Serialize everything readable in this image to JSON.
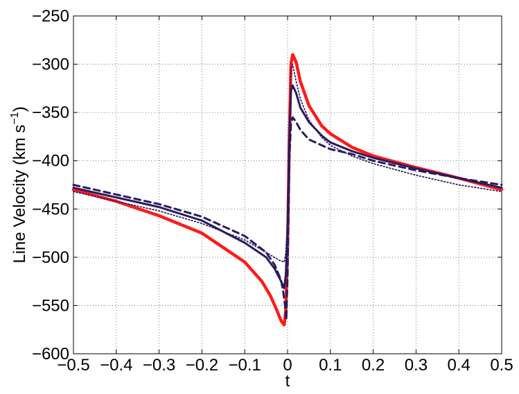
{
  "chart_data": {
    "type": "line",
    "title": "",
    "xlabel": "t",
    "ylabel": "Line Velocity (km s",
    "ylabel_sup": "−1",
    "ylabel_close": ")",
    "xlim": [
      -0.5,
      0.5
    ],
    "ylim": [
      -600,
      -250
    ],
    "xticks": [
      -0.5,
      -0.4,
      -0.3,
      -0.2,
      -0.1,
      0,
      0.1,
      0.2,
      0.3,
      0.4,
      0.5
    ],
    "xtick_labels": [
      "−0.5",
      "−0.4",
      "−0.3",
      "−0.2",
      "−0.1",
      "0",
      "0.1",
      "0.2",
      "0.3",
      "0.4",
      "0.5"
    ],
    "yticks": [
      -600,
      -550,
      -500,
      -450,
      -400,
      -350,
      -300,
      -250
    ],
    "ytick_labels": [
      "−600",
      "−550",
      "−500",
      "−450",
      "−400",
      "−350",
      "−300",
      "−250"
    ],
    "grid": true,
    "legend": "none",
    "series": [
      {
        "style": "solid-thick",
        "color": "#ff1a1a",
        "x": [
          -0.5,
          -0.4,
          -0.3,
          -0.2,
          -0.1,
          -0.06,
          -0.04,
          -0.025,
          -0.015,
          -0.008,
          -0.004,
          0.0,
          0.004,
          0.008,
          0.012,
          0.02,
          0.03,
          0.05,
          0.08,
          0.1,
          0.15,
          0.2,
          0.3,
          0.4,
          0.5
        ],
        "y": [
          -430,
          -442,
          -457,
          -475,
          -505,
          -525,
          -540,
          -555,
          -566,
          -570,
          -555,
          -490,
          -380,
          -300,
          -290,
          -298,
          -318,
          -343,
          -364,
          -372,
          -386,
          -395,
          -407,
          -418,
          -430
        ]
      },
      {
        "style": "solid",
        "color": "#2a1a5e",
        "x": [
          -0.5,
          -0.4,
          -0.3,
          -0.2,
          -0.1,
          -0.05,
          -0.03,
          -0.015,
          -0.008,
          -0.004,
          0.0,
          0.004,
          0.008,
          0.012,
          0.02,
          0.03,
          0.05,
          0.08,
          0.1,
          0.15,
          0.2,
          0.3,
          0.4,
          0.5
        ],
        "y": [
          -428,
          -438,
          -448,
          -462,
          -485,
          -500,
          -512,
          -525,
          -532,
          -518,
          -470,
          -380,
          -328,
          -322,
          -330,
          -345,
          -360,
          -374,
          -381,
          -390,
          -397,
          -408,
          -418,
          -428
        ]
      },
      {
        "style": "dashed",
        "color": "#2a1a5e",
        "x": [
          -0.5,
          -0.4,
          -0.3,
          -0.2,
          -0.1,
          -0.05,
          -0.03,
          -0.015,
          -0.01,
          -0.006,
          -0.003,
          0.0,
          0.004,
          0.008,
          0.012,
          0.02,
          0.03,
          0.05,
          0.08,
          0.1,
          0.15,
          0.2,
          0.3,
          0.4,
          0.5
        ],
        "y": [
          -425,
          -435,
          -445,
          -458,
          -478,
          -495,
          -508,
          -524,
          -536,
          -550,
          -565,
          -520,
          -400,
          -362,
          -355,
          -360,
          -368,
          -378,
          -384,
          -388,
          -393,
          -400,
          -410,
          -418,
          -425
        ]
      },
      {
        "style": "dotted",
        "color": "#2a1a5e",
        "x": [
          -0.5,
          -0.4,
          -0.3,
          -0.2,
          -0.1,
          -0.05,
          -0.02,
          -0.008,
          -0.004,
          0.0,
          0.004,
          0.008,
          0.012,
          0.02,
          0.03,
          0.05,
          0.08,
          0.1,
          0.15,
          0.2,
          0.3,
          0.4,
          0.5
        ],
        "y": [
          -432,
          -442,
          -452,
          -465,
          -482,
          -495,
          -503,
          -505,
          -495,
          -460,
          -380,
          -305,
          -300,
          -318,
          -336,
          -358,
          -376,
          -384,
          -395,
          -403,
          -415,
          -425,
          -432
        ]
      }
    ]
  }
}
